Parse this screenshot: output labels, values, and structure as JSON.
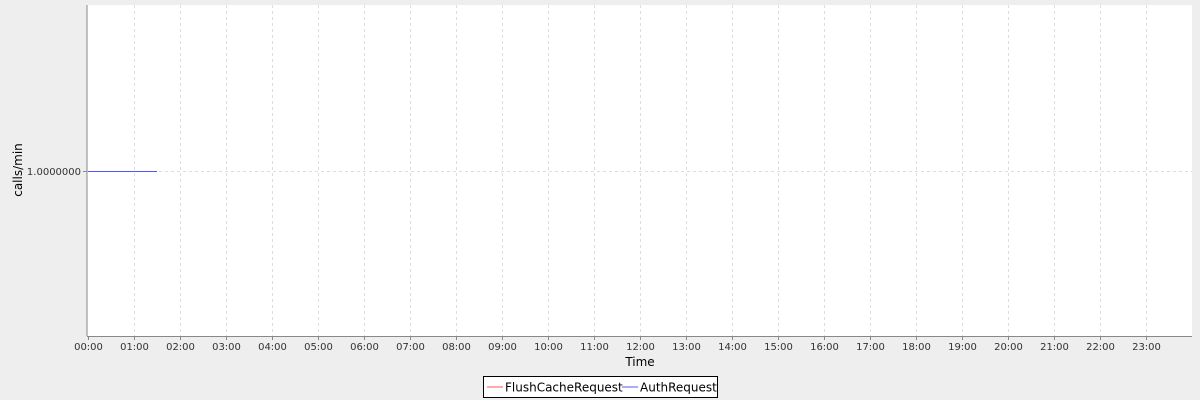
{
  "chart_data": {
    "type": "line",
    "title": "",
    "xlabel": "Time",
    "ylabel": "calls/min",
    "x_ticks": [
      "00:00",
      "01:00",
      "02:00",
      "03:00",
      "04:00",
      "05:00",
      "06:00",
      "07:00",
      "08:00",
      "09:00",
      "10:00",
      "11:00",
      "12:00",
      "13:00",
      "14:00",
      "15:00",
      "16:00",
      "17:00",
      "18:00",
      "19:00",
      "20:00",
      "21:00",
      "22:00",
      "23:00"
    ],
    "y_ticks": [
      "1.0000000"
    ],
    "y_tick_values": [
      1
    ],
    "xlim_hours": [
      0,
      24
    ],
    "ylim": [
      0,
      2
    ],
    "grid": true,
    "legend_placement": "bottom",
    "series": [
      {
        "name": "FlushCacheRequest",
        "color": "#ff5555",
        "x_hours": [],
        "values": []
      },
      {
        "name": "AuthRequest",
        "color": "#5555ff",
        "x_hours": [
          0,
          1.5
        ],
        "values": [
          1,
          1
        ]
      }
    ]
  }
}
